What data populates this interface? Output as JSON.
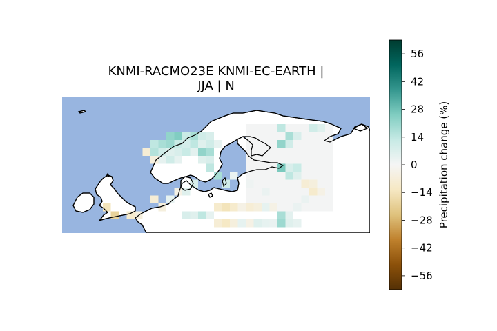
{
  "map": {
    "title_line1": "KNMI-RACMO23E KNMI-EC-EARTH |",
    "title_line2": "JJA | N",
    "region": "Northern Europe",
    "ocean_color": "#98b5e0",
    "land_color": "#ffffff",
    "coast_color": "#000000"
  },
  "colorbar": {
    "label": "Precipitation change (%)",
    "colormap": "BrBG",
    "vmin": -63,
    "vmax": 63,
    "ticks": [
      56,
      42,
      28,
      14,
      0,
      -14,
      -28,
      -42,
      -56
    ],
    "tick_labels": [
      "56",
      "42",
      "28",
      "14",
      "0",
      "−14",
      "−28",
      "−42",
      "−56"
    ]
  },
  "grid_cells": [
    {
      "lon": 8,
      "lat": 62,
      "value": 22
    },
    {
      "lon": 9,
      "lat": 62,
      "value": 25
    },
    {
      "lon": 10,
      "lat": 62,
      "value": 12
    },
    {
      "lon": 11,
      "lat": 62,
      "value": 18
    },
    {
      "lon": 12,
      "lat": 62,
      "value": 10
    },
    {
      "lon": 13,
      "lat": 62,
      "value": 8
    },
    {
      "lon": 6,
      "lat": 61,
      "value": 14
    },
    {
      "lon": 7,
      "lat": 61,
      "value": 18
    },
    {
      "lon": 8,
      "lat": 61,
      "value": 20
    },
    {
      "lon": 9,
      "lat": 61,
      "value": 12
    },
    {
      "lon": 10,
      "lat": 61,
      "value": 9
    },
    {
      "lon": 11,
      "lat": 61,
      "value": 14
    },
    {
      "lon": 12,
      "lat": 61,
      "value": 6
    },
    {
      "lon": 13,
      "lat": 61,
      "value": 10
    },
    {
      "lon": 14,
      "lat": 61,
      "value": 4
    },
    {
      "lon": 5,
      "lat": 60,
      "value": -8
    },
    {
      "lon": 6,
      "lat": 60,
      "value": 16
    },
    {
      "lon": 7,
      "lat": 60,
      "value": 10
    },
    {
      "lon": 8,
      "lat": 60,
      "value": 6
    },
    {
      "lon": 9,
      "lat": 60,
      "value": 8
    },
    {
      "lon": 10,
      "lat": 60,
      "value": 12
    },
    {
      "lon": 11,
      "lat": 60,
      "value": 5
    },
    {
      "lon": 12,
      "lat": 60,
      "value": 22
    },
    {
      "lon": 13,
      "lat": 60,
      "value": 18
    },
    {
      "lon": 6,
      "lat": 59,
      "value": -6
    },
    {
      "lon": 7,
      "lat": 59,
      "value": 4
    },
    {
      "lon": 8,
      "lat": 59,
      "value": 10
    },
    {
      "lon": 9,
      "lat": 59,
      "value": 4
    },
    {
      "lon": 12,
      "lat": 59,
      "value": 6
    },
    {
      "lon": 13,
      "lat": 59,
      "value": 8
    },
    {
      "lon": 22,
      "lat": 63,
      "value": 14
    },
    {
      "lon": 23,
      "lat": 62,
      "value": 18
    },
    {
      "lon": 24,
      "lat": 62,
      "value": 8
    },
    {
      "lon": 22,
      "lat": 61,
      "value": 22
    },
    {
      "lon": 23,
      "lat": 61,
      "value": 10
    },
    {
      "lon": 26,
      "lat": 63,
      "value": 10
    },
    {
      "lon": 27,
      "lat": 63,
      "value": 6
    },
    {
      "lon": 22,
      "lat": 58,
      "value": 26
    },
    {
      "lon": 23,
      "lat": 58,
      "value": 8
    },
    {
      "lon": 24,
      "lat": 58,
      "value": 12
    },
    {
      "lon": 23,
      "lat": 57,
      "value": 14
    },
    {
      "lon": 24,
      "lat": 57,
      "value": 6
    },
    {
      "lon": 25,
      "lat": 56,
      "value": -8
    },
    {
      "lon": 26,
      "lat": 56,
      "value": -6
    },
    {
      "lon": 1,
      "lat": 52,
      "value": -20
    },
    {
      "lon": 0,
      "lat": 53,
      "value": -14
    },
    {
      "lon": 3,
      "lat": 52,
      "value": -10
    },
    {
      "lon": 4,
      "lat": 52,
      "value": -6
    },
    {
      "lon": 6,
      "lat": 54,
      "value": -8
    },
    {
      "lon": 7,
      "lat": 53,
      "value": -6
    },
    {
      "lon": 8,
      "lat": 54,
      "value": 4
    },
    {
      "lon": 9,
      "lat": 55,
      "value": -4
    },
    {
      "lon": 10,
      "lat": 55,
      "value": 6
    },
    {
      "lon": 11,
      "lat": 56,
      "value": 8
    },
    {
      "lon": 10,
      "lat": 52,
      "value": 8
    },
    {
      "lon": 11,
      "lat": 52,
      "value": 6
    },
    {
      "lon": 12,
      "lat": 52,
      "value": 14
    },
    {
      "lon": 13,
      "lat": 52,
      "value": 4
    },
    {
      "lon": 14,
      "lat": 53,
      "value": -10
    },
    {
      "lon": 15,
      "lat": 53,
      "value": -14
    },
    {
      "lon": 16,
      "lat": 53,
      "value": -10
    },
    {
      "lon": 17,
      "lat": 53,
      "value": -4
    },
    {
      "lon": 18,
      "lat": 53,
      "value": -8
    },
    {
      "lon": 19,
      "lat": 53,
      "value": -6
    },
    {
      "lon": 20,
      "lat": 53,
      "value": 4
    },
    {
      "lon": 21,
      "lat": 53,
      "value": -4
    },
    {
      "lon": 14,
      "lat": 51,
      "value": -8
    },
    {
      "lon": 15,
      "lat": 51,
      "value": -12
    },
    {
      "lon": 16,
      "lat": 51,
      "value": -6
    },
    {
      "lon": 17,
      "lat": 51,
      "value": 4
    },
    {
      "lon": 18,
      "lat": 51,
      "value": -4
    },
    {
      "lon": 19,
      "lat": 51,
      "value": 6
    },
    {
      "lon": 20,
      "lat": 51,
      "value": 4
    },
    {
      "lon": 21,
      "lat": 51,
      "value": 3
    },
    {
      "lon": 22,
      "lat": 51,
      "value": 20
    },
    {
      "lon": 23,
      "lat": 51,
      "value": 6
    },
    {
      "lon": 24,
      "lat": 51,
      "value": 4
    },
    {
      "lon": 22,
      "lat": 52,
      "value": 18
    },
    {
      "lon": 23,
      "lat": 52,
      "value": 5
    },
    {
      "lon": 24,
      "lat": 53,
      "value": 3
    },
    {
      "lon": 26,
      "lat": 55,
      "value": -10
    },
    {
      "lon": 27,
      "lat": 55,
      "value": -4
    },
    {
      "lon": 25,
      "lat": 54,
      "value": 3
    },
    {
      "lon": 20,
      "lat": 55,
      "value": 3
    },
    {
      "lon": 18,
      "lat": 56,
      "value": 2
    },
    {
      "lon": 16,
      "lat": 57,
      "value": 3
    },
    {
      "lon": 15,
      "lat": 56,
      "value": 10
    },
    {
      "lon": 14,
      "lat": 57,
      "value": 18
    },
    {
      "lon": 13,
      "lat": 58,
      "value": 14
    }
  ]
}
